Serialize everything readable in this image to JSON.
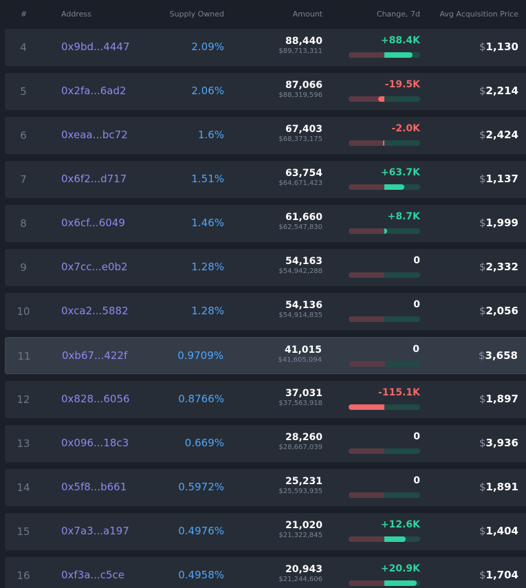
{
  "header": {
    "rank": "#",
    "address": "Address",
    "supply": "Supply Owned",
    "amount": "Amount",
    "change": "Change, 7d",
    "price": "Avg Acquisition Price"
  },
  "currency_symbol": "$",
  "colors": {
    "address": "#8f88f0",
    "supply": "#4ea7ff",
    "positive": "#2fd4a1",
    "negative": "#f36767"
  },
  "rows": [
    {
      "rank": "4",
      "address": "0x9bd...4447",
      "supply": "2.09%",
      "amount": "88,440",
      "amount_usd": "$89,713,311",
      "change": "+88.4K",
      "change_sign": "pos",
      "change_fraction": 0.78,
      "price": "1,130",
      "highlight": false
    },
    {
      "rank": "5",
      "address": "0x2fa...6ad2",
      "supply": "2.06%",
      "amount": "87,066",
      "amount_usd": "$88,319,596",
      "change": "-19.5K",
      "change_sign": "neg",
      "change_fraction": 0.17,
      "price": "2,214",
      "highlight": false
    },
    {
      "rank": "6",
      "address": "0xeaa...bc72",
      "supply": "1.6%",
      "amount": "67,403",
      "amount_usd": "$68,373,175",
      "change": "-2.0K",
      "change_sign": "neg",
      "change_fraction": 0.02,
      "price": "2,424",
      "highlight": false
    },
    {
      "rank": "7",
      "address": "0x6f2...d717",
      "supply": "1.51%",
      "amount": "63,754",
      "amount_usd": "$64,671,423",
      "change": "+63.7K",
      "change_sign": "pos",
      "change_fraction": 0.56,
      "price": "1,137",
      "highlight": false
    },
    {
      "rank": "8",
      "address": "0x6cf...6049",
      "supply": "1.46%",
      "amount": "61,660",
      "amount_usd": "$62,547,830",
      "change": "+8.7K",
      "change_sign": "pos",
      "change_fraction": 0.08,
      "price": "1,999",
      "highlight": false
    },
    {
      "rank": "9",
      "address": "0x7cc...e0b2",
      "supply": "1.28%",
      "amount": "54,163",
      "amount_usd": "$54,942,288",
      "change": "0",
      "change_sign": "zero",
      "change_fraction": 0,
      "price": "2,332",
      "highlight": false
    },
    {
      "rank": "10",
      "address": "0xca2...5882",
      "supply": "1.28%",
      "amount": "54,136",
      "amount_usd": "$54,914,835",
      "change": "0",
      "change_sign": "zero",
      "change_fraction": 0,
      "price": "2,056",
      "highlight": false
    },
    {
      "rank": "11",
      "address": "0xb67...422f",
      "supply": "0.9709%",
      "amount": "41,015",
      "amount_usd": "$41,605,094",
      "change": "0",
      "change_sign": "zero",
      "change_fraction": 0,
      "price": "3,658",
      "highlight": true
    },
    {
      "rank": "12",
      "address": "0x828...6056",
      "supply": "0.8766%",
      "amount": "37,031",
      "amount_usd": "$37,563,918",
      "change": "-115.1K",
      "change_sign": "neg",
      "change_fraction": 1.0,
      "price": "1,897",
      "highlight": false
    },
    {
      "rank": "13",
      "address": "0x096...18c3",
      "supply": "0.669%",
      "amount": "28,260",
      "amount_usd": "$28,667,039",
      "change": "0",
      "change_sign": "zero",
      "change_fraction": 0,
      "price": "3,936",
      "highlight": false
    },
    {
      "rank": "14",
      "address": "0x5f8...b661",
      "supply": "0.5972%",
      "amount": "25,231",
      "amount_usd": "$25,593,935",
      "change": "0",
      "change_sign": "zero",
      "change_fraction": 0,
      "price": "1,891",
      "highlight": false
    },
    {
      "rank": "15",
      "address": "0x7a3...a197",
      "supply": "0.4976%",
      "amount": "21,020",
      "amount_usd": "$21,322,845",
      "change": "+12.6K",
      "change_sign": "pos",
      "change_fraction": 0.6,
      "price": "1,404",
      "highlight": false
    },
    {
      "rank": "16",
      "address": "0xf3a...c5ce",
      "supply": "0.4958%",
      "amount": "20,943",
      "amount_usd": "$21,244,606",
      "change": "+20.9K",
      "change_sign": "pos",
      "change_fraction": 0.9,
      "price": "1,704",
      "highlight": false
    }
  ]
}
